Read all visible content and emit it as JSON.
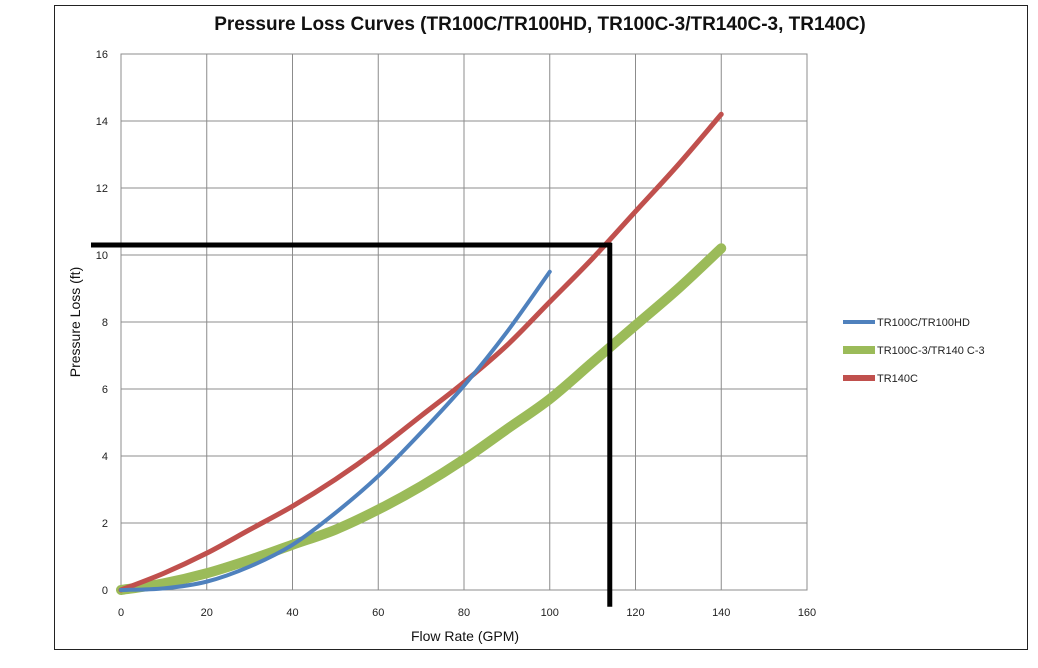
{
  "chart_data": {
    "type": "line",
    "title": "Pressure Loss Curves (TR100C/TR100HD, TR100C-3/TR140C-3, TR140C)",
    "xlabel": "Flow Rate (GPM)",
    "ylabel": "Pressure Loss (ft)",
    "xlim": [
      0,
      160
    ],
    "ylim": [
      0,
      16
    ],
    "xticks": [
      "0",
      "20",
      "40",
      "60",
      "80",
      "100",
      "120",
      "140",
      "160"
    ],
    "yticks": [
      "0",
      "2",
      "4",
      "6",
      "8",
      "10",
      "12",
      "14",
      "16"
    ],
    "grid": true,
    "legend_position": "right",
    "series": [
      {
        "name": "TR100C/TR100HD",
        "color": "#4f81bd",
        "x": [
          0,
          10,
          20,
          30,
          40,
          50,
          60,
          70,
          80,
          90,
          100
        ],
        "y": [
          0,
          0.05,
          0.25,
          0.7,
          1.35,
          2.3,
          3.4,
          4.7,
          6.1,
          7.7,
          9.5
        ]
      },
      {
        "name": "TR100C-3/TR140 C-3",
        "color": "#9bbb59",
        "x": [
          0,
          10,
          20,
          30,
          40,
          50,
          60,
          70,
          80,
          90,
          100,
          110,
          120,
          130,
          140
        ],
        "y": [
          0,
          0.2,
          0.5,
          0.9,
          1.35,
          1.8,
          2.4,
          3.1,
          3.9,
          4.8,
          5.7,
          6.8,
          7.9,
          9.0,
          10.2
        ]
      },
      {
        "name": "TR140C",
        "color": "#c0504d",
        "x": [
          0,
          10,
          20,
          30,
          40,
          50,
          60,
          70,
          80,
          90,
          100,
          110,
          120,
          130,
          140
        ],
        "y": [
          0,
          0.5,
          1.1,
          1.8,
          2.5,
          3.3,
          4.2,
          5.2,
          6.2,
          7.3,
          8.6,
          9.9,
          11.3,
          12.7,
          14.2
        ]
      }
    ],
    "annotation_lines": {
      "color": "#000000",
      "horizontal_y": 10.3,
      "horizontal_x_range": [
        -7,
        114
      ],
      "vertical_x": 114,
      "vertical_y_range": [
        -0.5,
        10.3
      ]
    }
  }
}
